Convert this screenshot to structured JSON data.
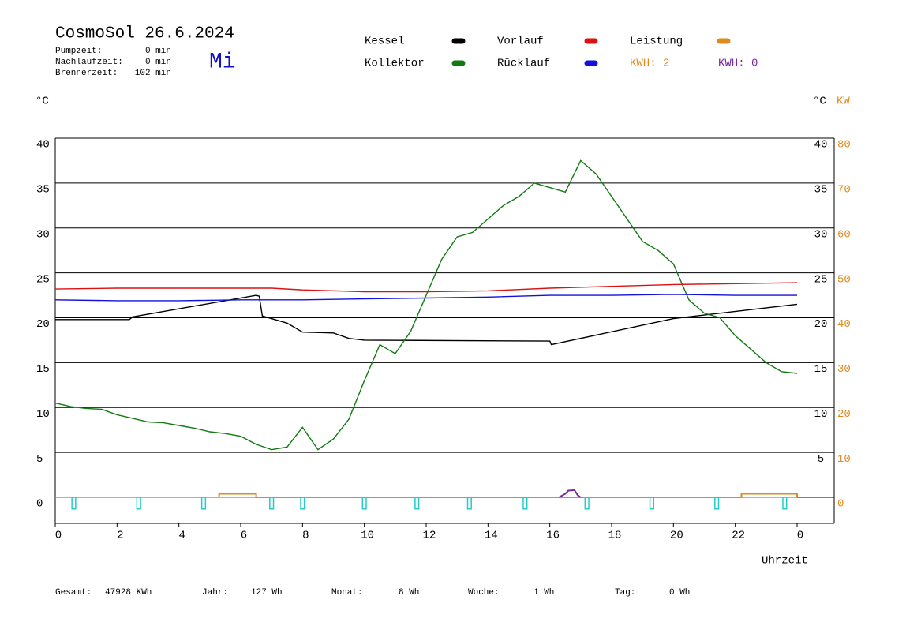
{
  "chart_data": {
    "type": "line",
    "title": "CosmoSol 26.6.2024",
    "day": "Mi",
    "stats": [
      [
        "Pumpzeit:",
        "0 min"
      ],
      [
        "Nachlaufzeit:",
        "0 min"
      ],
      [
        "Brennerzeit:",
        "102 min"
      ]
    ],
    "y_unit": "°C",
    "y_right_unit": "°C",
    "y2_unit": "KW",
    "xlabel": "Uhrzeit",
    "xlim": [
      0,
      25.2
    ],
    "xticks": [
      0,
      2,
      4,
      6,
      8,
      10,
      12,
      14,
      16,
      18,
      20,
      22,
      {
        "value": 24,
        "label": "0"
      }
    ],
    "ylim": [
      -2.9,
      40
    ],
    "yticks": [
      0,
      5,
      10,
      15,
      20,
      25,
      30,
      35,
      40
    ],
    "y_right_ticks": [
      5,
      10,
      15,
      20,
      25,
      30,
      35,
      40
    ],
    "y2lim": [
      -5.8,
      80
    ],
    "y2ticks": [
      0,
      10,
      20,
      30,
      40,
      50,
      60,
      70,
      80
    ],
    "y2color": "#e08a1e",
    "grid": true,
    "series": [
      {
        "name": "Kessel",
        "color": "#000000",
        "x": [
          0,
          2.4,
          2.5,
          6.5,
          6.6,
          6.7,
          7.5,
          8,
          9,
          9.5,
          10,
          16,
          16.05,
          20,
          24
        ],
        "values": [
          19.8,
          19.8,
          20.1,
          22.5,
          22.4,
          20.2,
          19.4,
          18.4,
          18.3,
          17.7,
          17.5,
          17.4,
          17.0,
          19.9,
          21.5
        ]
      },
      {
        "name": "Kollektor",
        "color": "#117a11",
        "x": [
          0,
          0.5,
          1,
          1.5,
          2,
          2.5,
          3,
          3.5,
          4,
          4.5,
          5,
          5.5,
          6,
          6.5,
          7,
          7.5,
          8,
          8.5,
          9,
          9.5,
          10,
          10.5,
          11,
          11.5,
          12,
          12.5,
          13,
          13.5,
          14,
          14.5,
          15,
          15.5,
          16,
          16.5,
          17,
          17.5,
          18,
          18.5,
          19,
          19.5,
          20,
          20.5,
          21,
          21.5,
          22,
          22.5,
          23,
          23.5,
          24
        ],
        "values": [
          10.5,
          10.1,
          9.9,
          9.8,
          9.2,
          8.8,
          8.4,
          8.3,
          8.0,
          7.7,
          7.3,
          7.1,
          6.8,
          5.9,
          5.3,
          5.6,
          7.8,
          5.3,
          6.5,
          8.7,
          13,
          17,
          16,
          18.5,
          22.5,
          26.5,
          29,
          29.5,
          31,
          32.5,
          33.5,
          35,
          34.5,
          34,
          37.5,
          36,
          33.5,
          31,
          28.5,
          27.5,
          26,
          22,
          20.5,
          20,
          18,
          16.5,
          15,
          14,
          13.8
        ]
      },
      {
        "name": "Vorlauf",
        "color": "#dd1111",
        "x": [
          0,
          2,
          4,
          6,
          7,
          8,
          10,
          12,
          14,
          16,
          18,
          20,
          22,
          24
        ],
        "values": [
          23.2,
          23.3,
          23.3,
          23.3,
          23.3,
          23.1,
          22.9,
          22.9,
          23.0,
          23.3,
          23.5,
          23.7,
          23.8,
          23.9
        ]
      },
      {
        "name": "Rücklauf",
        "color": "#1111dd",
        "x": [
          0,
          2,
          4,
          6,
          8,
          10,
          12,
          14,
          16,
          18,
          20,
          22,
          24
        ],
        "values": [
          22.0,
          21.9,
          21.9,
          22.0,
          22.0,
          22.1,
          22.2,
          22.3,
          22.5,
          22.5,
          22.6,
          22.5,
          22.5
        ]
      },
      {
        "name": "Leistung",
        "color": "#e08a1e",
        "axis": "y2",
        "x": [
          5.3,
          5.3,
          6.5,
          6.5,
          22.2,
          22.2,
          24,
          24
        ],
        "values": [
          0,
          0.8,
          0.8,
          0,
          0,
          0.8,
          0.8,
          0
        ]
      },
      {
        "color": "#7a2a9a",
        "axis": "y2",
        "x": [
          16.3,
          16.5,
          16.6,
          16.8,
          16.9,
          17.0
        ],
        "values": [
          0,
          0.8,
          1.5,
          1.6,
          0.5,
          0
        ]
      }
    ],
    "kwh_labels": [
      {
        "text": "KWH: 2",
        "color": "#e08a1e"
      },
      {
        "text": "KWH: 0",
        "color": "#7a2a9a"
      }
    ],
    "pulses": {
      "color": "#22cccc",
      "depth": -1.3,
      "width": 0.12,
      "x": [
        0.6,
        2.7,
        4.8,
        7.0,
        8.0,
        10.0,
        11.7,
        13.4,
        15.2,
        17.2,
        19.3,
        21.4,
        23.6
      ]
    },
    "footer": [
      [
        "Gesamt:",
        "47928 KWh"
      ],
      [
        "Jahr:",
        "127 Wh"
      ],
      [
        "Monat:",
        "8 Wh"
      ],
      [
        "Woche:",
        "1 Wh"
      ],
      [
        "Tag:",
        "0 Wh"
      ]
    ]
  }
}
